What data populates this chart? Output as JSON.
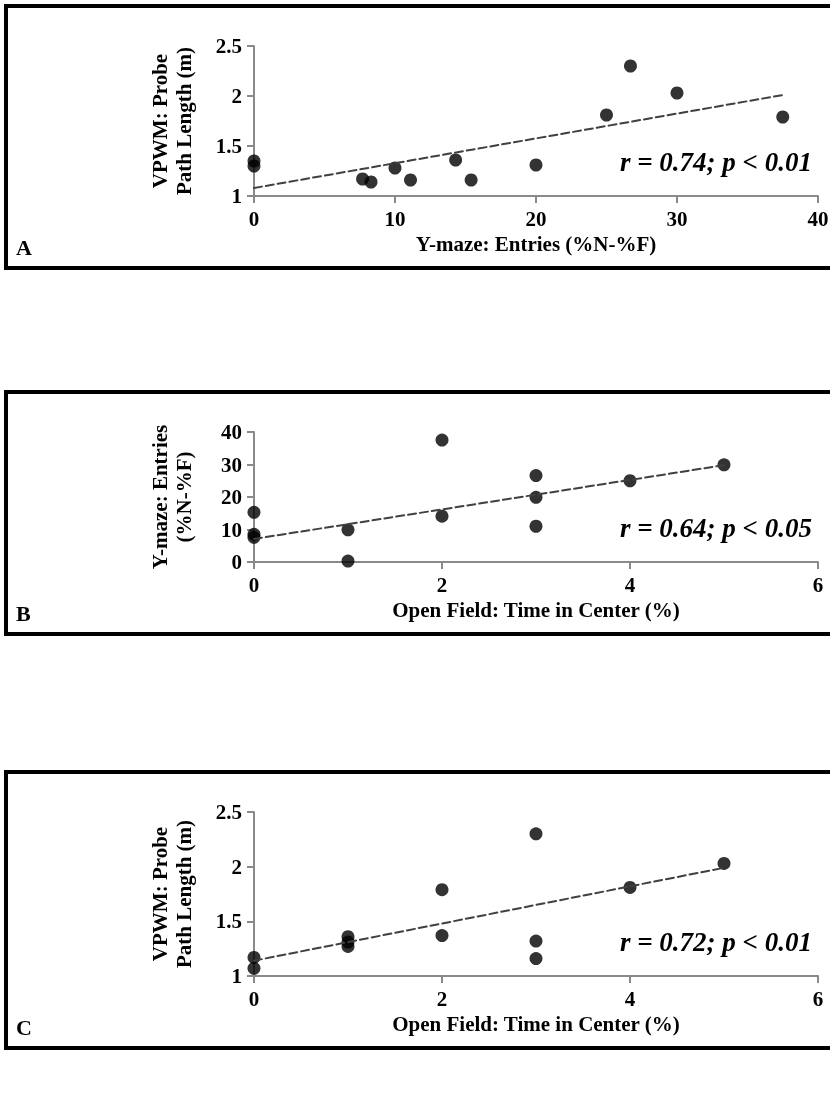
{
  "chart_data": [
    {
      "type": "scatter",
      "xlabel": "Y-maze: Entries (%N-%F)",
      "ylabel": "VPWM: Probe Path Length (m)",
      "xlim": [
        0,
        40
      ],
      "ylim": [
        1,
        2.5
      ],
      "xticks": [
        0,
        10,
        20,
        30,
        40
      ],
      "yticks": [
        1,
        1.5,
        2,
        2.5
      ],
      "grid": false,
      "marker": "circle",
      "annotations": [
        "A",
        "r = 0.74; p < 0.01"
      ],
      "series": [
        {
          "color": "#000000",
          "x": [
            0,
            0,
            7.7,
            8.3,
            10,
            11.1,
            14.3,
            15.4,
            20,
            25,
            26.7,
            30,
            37.5
          ],
          "values": [
            1.35,
            1.3,
            1.17,
            1.14,
            1.28,
            1.16,
            1.36,
            1.16,
            1.31,
            1.81,
            2.3,
            2.03,
            1.79
          ]
        },
        {
          "type": "line",
          "color": "#404040",
          "line_style": "dashed",
          "marker": "none",
          "x": [
            0,
            37.5
          ],
          "values": [
            1.08,
            2.01
          ]
        }
      ]
    },
    {
      "type": "scatter",
      "xlabel": "Open Field: Time in Center (%)",
      "ylabel": "Y-maze: Entries (%N-%F)",
      "xlim": [
        0,
        6
      ],
      "ylim": [
        0,
        40
      ],
      "xticks": [
        0,
        2,
        4,
        6
      ],
      "yticks": [
        0,
        10,
        20,
        30,
        40
      ],
      "grid": false,
      "marker": "circle",
      "annotations": [
        "B",
        "r = 0.64; p < 0.05"
      ],
      "series": [
        {
          "color": "#000000",
          "x": [
            0,
            0,
            0,
            1,
            1,
            2,
            2,
            3,
            3,
            3,
            4,
            5
          ],
          "values": [
            15.3,
            8.5,
            7.6,
            9.9,
            0.3,
            37.5,
            14.1,
            26.6,
            19.9,
            11,
            25,
            29.9
          ]
        },
        {
          "type": "line",
          "color": "#404040",
          "line_style": "dashed",
          "marker": "none",
          "x": [
            0,
            5
          ],
          "values": [
            7.1,
            29.8
          ]
        }
      ]
    },
    {
      "type": "scatter",
      "xlabel": "Open Field: Time in Center (%)",
      "ylabel": "VPWM: Probe Path Length (m)",
      "xlim": [
        0,
        6
      ],
      "ylim": [
        1,
        2.5
      ],
      "xticks": [
        0,
        2,
        4,
        6
      ],
      "yticks": [
        1,
        1.5,
        2,
        2.5
      ],
      "grid": false,
      "marker": "circle",
      "annotations": [
        "C",
        "r = 0.72; p < 0.01"
      ],
      "series": [
        {
          "color": "#000000",
          "x": [
            0,
            0,
            1,
            1,
            1,
            2,
            2,
            3,
            3,
            3,
            4,
            5
          ],
          "values": [
            1.17,
            1.07,
            1.36,
            1.31,
            1.27,
            1.79,
            1.37,
            2.3,
            1.32,
            1.16,
            1.81,
            2.03
          ]
        },
        {
          "type": "line",
          "color": "#404040",
          "line_style": "dashed",
          "marker": "none",
          "x": [
            0,
            5
          ],
          "values": [
            1.14,
            1.99
          ]
        }
      ]
    }
  ]
}
